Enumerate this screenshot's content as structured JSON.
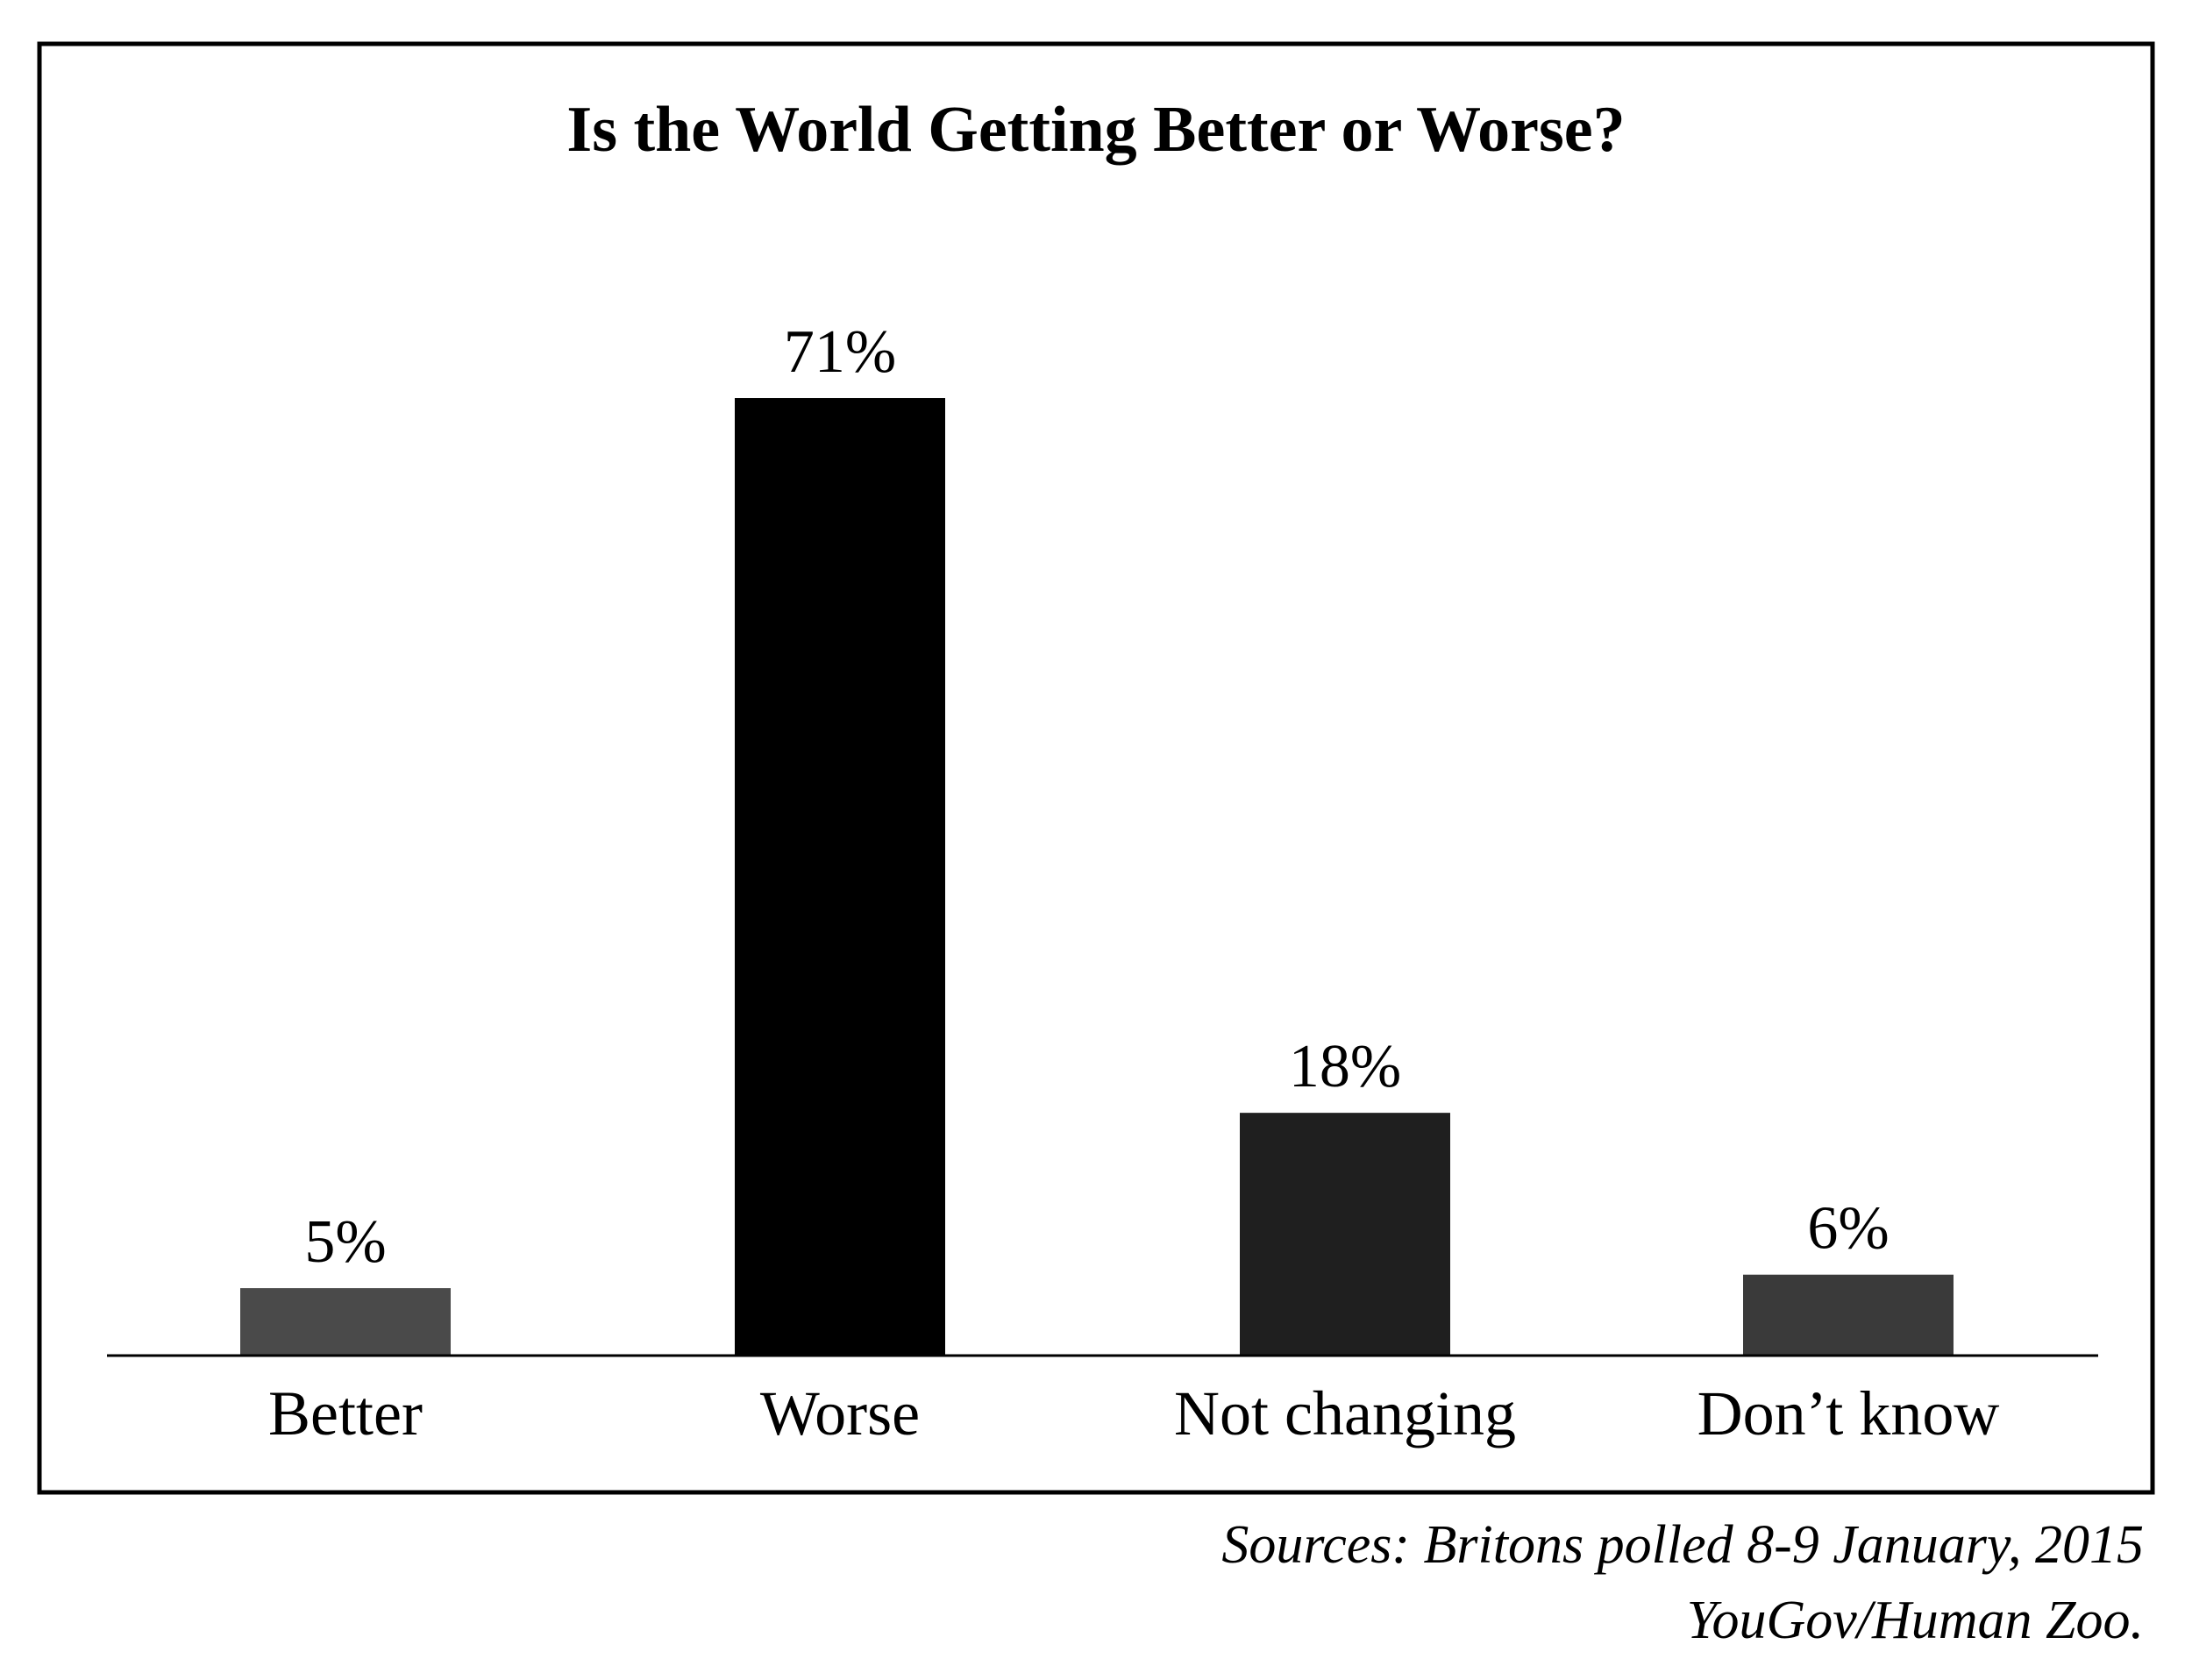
{
  "chart_data": {
    "type": "bar",
    "title": "Is the World Getting Better or Worse?",
    "categories": [
      "Better",
      "Worse",
      "Not changing",
      "Don’t know"
    ],
    "values": [
      5,
      71,
      18,
      6
    ],
    "value_labels": [
      "5%",
      "71%",
      "18%",
      "6%"
    ],
    "bar_colors": [
      "#4a4a4a",
      "#000000",
      "#1f1f1f",
      "#3a3a3a"
    ],
    "ylim": [
      0,
      80
    ],
    "grid": false,
    "legend": "none"
  },
  "source": {
    "line1": "Sources: Britons polled 8-9 January, 2015",
    "line2": "YouGov/Human Zoo."
  }
}
